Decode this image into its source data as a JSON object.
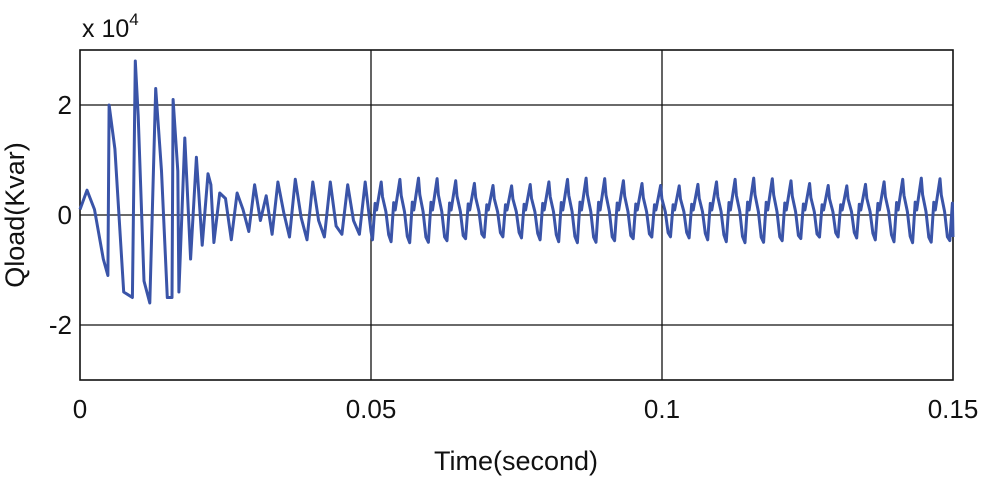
{
  "chart_data": {
    "type": "line",
    "title": "",
    "xlabel": "Time(second)",
    "ylabel": "Qload(Kvar)",
    "y_multiplier_label": "x 10",
    "y_multiplier_exponent": "4",
    "xlim": [
      0,
      0.15
    ],
    "ylim": [
      -3,
      3
    ],
    "xticks": [
      0,
      0.05,
      0.1,
      0.15
    ],
    "xtick_labels": [
      "0",
      "0.05",
      "0.1",
      "0.15"
    ],
    "yticks": [
      -2,
      0,
      2
    ],
    "ytick_labels": [
      "-2",
      "0",
      "2"
    ],
    "grid": true,
    "line_color": "#3a54a8",
    "series": [
      {
        "values_x": [
          0,
          0.0012,
          0.0025,
          0.004,
          0.0048,
          0.005,
          0.006,
          0.0075,
          0.009,
          0.0095,
          0.01,
          0.011,
          0.012,
          0.013,
          0.014,
          0.015,
          0.0158,
          0.016,
          0.0168,
          0.017,
          0.018,
          0.019,
          0.02,
          0.021,
          0.022,
          0.0225,
          0.023,
          0.024,
          0.025,
          0.026,
          0.027,
          0.028,
          0.029,
          0.03,
          0.031,
          0.032,
          0.033,
          0.034,
          0.035,
          0.036,
          0.037,
          0.038,
          0.039,
          0.04,
          0.041,
          0.042,
          0.043,
          0.044,
          0.045,
          0.046,
          0.047,
          0.048,
          0.049,
          0.05
        ],
        "values_y": [
          0.1,
          0.45,
          0.1,
          -0.8,
          -1.1,
          2.0,
          1.2,
          -1.4,
          -1.5,
          2.8,
          1.8,
          -1.2,
          -1.6,
          2.3,
          0.8,
          -1.5,
          -1.5,
          2.1,
          0.8,
          -1.4,
          1.4,
          -0.8,
          1.05,
          -0.55,
          0.75,
          0.55,
          -0.5,
          0.4,
          0.3,
          -0.45,
          0.4,
          0.1,
          -0.3,
          0.55,
          -0.1,
          0.35,
          -0.35,
          0.6,
          0.05,
          -0.4,
          0.65,
          -0.05,
          -0.45,
          0.6,
          -0.1,
          -0.4,
          0.6,
          -0.2,
          -0.35,
          0.55,
          -0.1,
          -0.35,
          0.6,
          -0.3
        ],
        "periodic_segment": {
          "x_start": 0.05,
          "x_end": 0.15,
          "period": 0.0032,
          "peak": 0.6,
          "trough": -0.45
        }
      }
    ]
  }
}
